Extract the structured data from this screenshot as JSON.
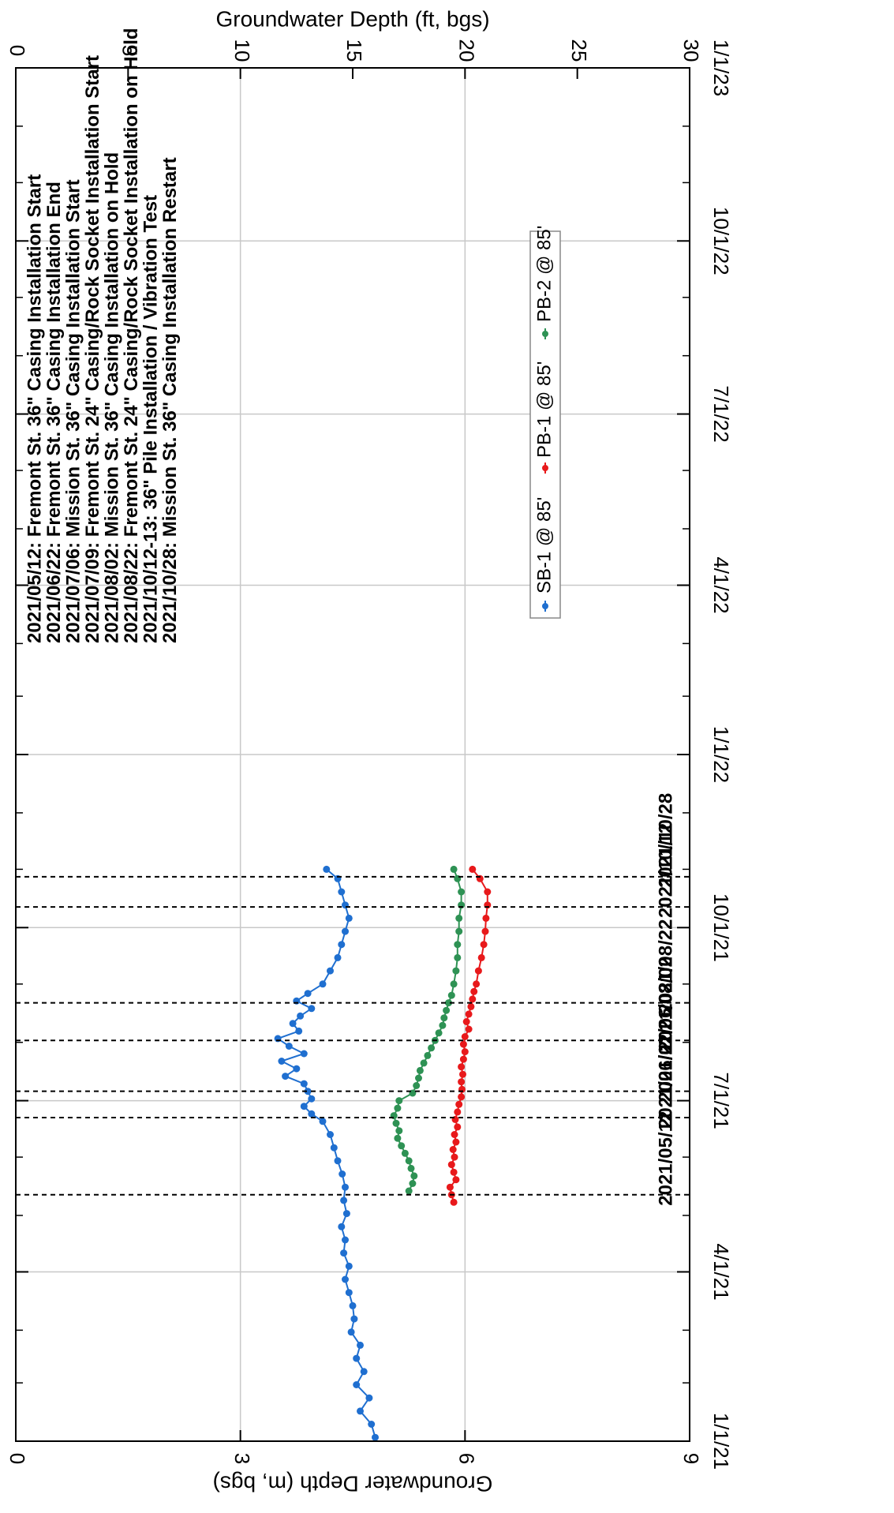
{
  "chart_data": {
    "type": "line",
    "orientation": "rotated-90-clockwise",
    "title": "",
    "x_axis": {
      "label": "",
      "type": "date",
      "range": [
        "2021-01-01",
        "2023-01-01"
      ],
      "tick_labels": [
        "1/1/21",
        "4/1/21",
        "7/1/21",
        "10/1/21",
        "1/1/22",
        "4/1/22",
        "7/1/22",
        "10/1/22",
        "1/1/23"
      ],
      "tick_dates": [
        "2021-01-01",
        "2021-04-01",
        "2021-07-01",
        "2021-10-01",
        "2022-01-01",
        "2022-04-01",
        "2022-07-01",
        "2022-10-01",
        "2023-01-01"
      ],
      "minor_tick_dates": [
        "2021-02-01",
        "2021-03-01",
        "2021-05-01",
        "2021-06-01",
        "2021-08-01",
        "2021-09-01",
        "2021-11-01",
        "2021-12-01",
        "2022-02-01",
        "2022-03-01",
        "2022-05-01",
        "2022-06-01",
        "2022-08-01",
        "2022-09-01",
        "2022-11-01",
        "2022-12-01"
      ]
    },
    "y_axis_primary": {
      "label": "Groundwater Depth (m, bgs)",
      "range": [
        0,
        9
      ],
      "tick_labels": [
        "0",
        "3",
        "6",
        "9"
      ]
    },
    "y_axis_secondary": {
      "label": "Groundwater Depth (ft, bgs)",
      "range": [
        0,
        30
      ],
      "tick_labels": [
        "0",
        "5",
        "10",
        "15",
        "20",
        "25",
        "30"
      ]
    },
    "grid": true,
    "legend": {
      "placement": "center-right",
      "entries": [
        "SB-1 @ 85'",
        "PB-1 @ 85'",
        "PB-2 @ 85'"
      ]
    },
    "events": [
      {
        "date": "2021-05-12",
        "label": "2021/05/12"
      },
      {
        "date": "2021-06-22",
        "label": "2021/06/22"
      },
      {
        "date": "2021-07-06",
        "label": "2021/07/06"
      },
      {
        "date": "2021-08-02",
        "label": "2021/08/02"
      },
      {
        "date": "2021-08-22",
        "label": "2021/08/22"
      },
      {
        "date": "2021-10-12",
        "label": "2021/10/12"
      },
      {
        "date": "2021-10-28",
        "label": "2021/10/28"
      }
    ],
    "annotations": [
      "2021/05/12:  Fremont St.  36\" Casing Installation Start",
      "2021/06/22:  Fremont St.  36\" Casing Installation End",
      "2021/07/06:  Mission St.  36\" Casing Installation Start",
      "2021/07/09:  Fremont St.  24\" Casing/Rock Socket Installation Start",
      "2021/08/02:  Mission St.  36\" Casing Installation on Hold",
      "2021/08/22:  Fremont St.  24\" Casing/Rock Socket Installation on Hold",
      "2021/10/12-13:  36\" Pile Installation / Vibration Test",
      "2021/10/28:  Mission St.  36\" Casing Installation Restart"
    ],
    "series": [
      {
        "name": "SB-1 @ 85'",
        "color": "#1f6fd0",
        "x": [
          "2021-01-03",
          "2021-01-10",
          "2021-01-17",
          "2021-01-24",
          "2021-01-31",
          "2021-02-07",
          "2021-02-14",
          "2021-02-21",
          "2021-02-28",
          "2021-03-07",
          "2021-03-14",
          "2021-03-21",
          "2021-03-28",
          "2021-04-04",
          "2021-04-11",
          "2021-04-18",
          "2021-04-25",
          "2021-05-02",
          "2021-05-09",
          "2021-05-16",
          "2021-05-23",
          "2021-05-30",
          "2021-06-06",
          "2021-06-13",
          "2021-06-20",
          "2021-06-24",
          "2021-06-28",
          "2021-07-02",
          "2021-07-06",
          "2021-07-10",
          "2021-07-14",
          "2021-07-18",
          "2021-07-22",
          "2021-07-26",
          "2021-07-30",
          "2021-08-03",
          "2021-08-07",
          "2021-08-11",
          "2021-08-15",
          "2021-08-19",
          "2021-08-23",
          "2021-08-27",
          "2021-09-01",
          "2021-09-08",
          "2021-09-15",
          "2021-09-22",
          "2021-09-29",
          "2021-10-06",
          "2021-10-13",
          "2021-10-20",
          "2021-10-27",
          "2021-11-01"
        ],
        "values": [
          4.8,
          4.75,
          4.6,
          4.72,
          4.55,
          4.65,
          4.55,
          4.6,
          4.48,
          4.52,
          4.5,
          4.45,
          4.4,
          4.45,
          4.38,
          4.4,
          4.35,
          4.42,
          4.38,
          4.4,
          4.36,
          4.3,
          4.25,
          4.2,
          4.1,
          3.95,
          3.85,
          3.95,
          3.9,
          3.85,
          3.6,
          3.75,
          3.55,
          3.85,
          3.65,
          3.5,
          3.78,
          3.7,
          3.8,
          3.95,
          3.75,
          3.9,
          4.1,
          4.2,
          4.3,
          4.35,
          4.4,
          4.45,
          4.4,
          4.35,
          4.3,
          4.15
        ]
      },
      {
        "name": "PB-1 @ 85'",
        "color": "#e8191b",
        "x": [
          "2021-05-08",
          "2021-05-12",
          "2021-05-16",
          "2021-05-20",
          "2021-05-24",
          "2021-05-28",
          "2021-06-01",
          "2021-06-05",
          "2021-06-09",
          "2021-06-13",
          "2021-06-17",
          "2021-06-21",
          "2021-06-25",
          "2021-06-29",
          "2021-07-03",
          "2021-07-07",
          "2021-07-11",
          "2021-07-15",
          "2021-07-19",
          "2021-07-23",
          "2021-07-27",
          "2021-07-31",
          "2021-08-04",
          "2021-08-08",
          "2021-08-12",
          "2021-08-16",
          "2021-08-20",
          "2021-08-24",
          "2021-08-28",
          "2021-09-01",
          "2021-09-08",
          "2021-09-15",
          "2021-09-22",
          "2021-09-29",
          "2021-10-06",
          "2021-10-13",
          "2021-10-20",
          "2021-10-27",
          "2021-11-01"
        ],
        "values": [
          5.85,
          5.82,
          5.8,
          5.88,
          5.85,
          5.82,
          5.86,
          5.84,
          5.88,
          5.86,
          5.9,
          5.87,
          5.9,
          5.92,
          5.95,
          5.96,
          5.95,
          5.97,
          5.95,
          5.98,
          6.0,
          5.98,
          6.0,
          6.05,
          6.02,
          6.05,
          6.08,
          6.1,
          6.12,
          6.15,
          6.18,
          6.22,
          6.25,
          6.27,
          6.28,
          6.3,
          6.3,
          6.2,
          6.1
        ]
      },
      {
        "name": "PB-2 @ 85'",
        "color": "#2e9254",
        "x": [
          "2021-05-14",
          "2021-05-18",
          "2021-05-22",
          "2021-05-26",
          "2021-05-30",
          "2021-06-03",
          "2021-06-07",
          "2021-06-11",
          "2021-06-15",
          "2021-06-19",
          "2021-06-23",
          "2021-06-27",
          "2021-07-01",
          "2021-07-05",
          "2021-07-09",
          "2021-07-13",
          "2021-07-17",
          "2021-07-21",
          "2021-07-25",
          "2021-07-29",
          "2021-08-02",
          "2021-08-06",
          "2021-08-10",
          "2021-08-14",
          "2021-08-18",
          "2021-08-22",
          "2021-08-26",
          "2021-09-01",
          "2021-09-08",
          "2021-09-15",
          "2021-09-22",
          "2021-09-29",
          "2021-10-06",
          "2021-10-13",
          "2021-10-20",
          "2021-10-27",
          "2021-11-01"
        ],
        "values": [
          5.25,
          5.3,
          5.32,
          5.28,
          5.25,
          5.2,
          5.15,
          5.1,
          5.12,
          5.08,
          5.05,
          5.1,
          5.12,
          5.3,
          5.35,
          5.38,
          5.4,
          5.45,
          5.5,
          5.55,
          5.6,
          5.65,
          5.7,
          5.72,
          5.75,
          5.78,
          5.82,
          5.85,
          5.88,
          5.9,
          5.9,
          5.92,
          5.92,
          5.95,
          5.95,
          5.9,
          5.85
        ]
      }
    ]
  }
}
